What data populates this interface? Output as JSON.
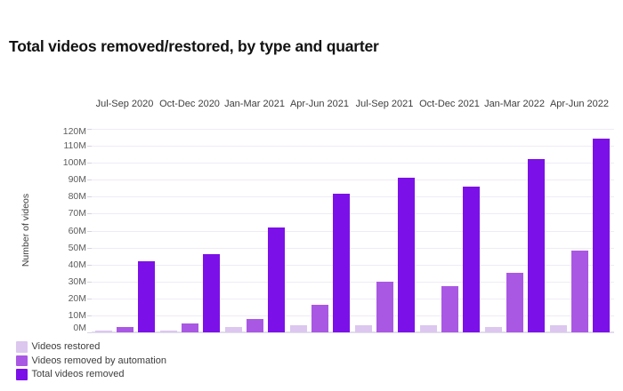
{
  "page": {
    "title": "Total videos removed/restored, by type and quarter"
  },
  "chart_data": {
    "type": "bar",
    "title": "Total videos removed/restored, by type and quarter",
    "categories": [
      "Jul-Sep 2020",
      "Oct-Dec 2020",
      "Jan-Mar 2021",
      "Apr-Jun 2021",
      "Jul-Sep 2021",
      "Oct-Dec 2021",
      "Jan-Mar 2022",
      "Apr-Jun 2022"
    ],
    "unit": "millions of videos",
    "series": [
      {
        "name": "Videos restored",
        "color": "#dcc7ef",
        "values": [
          1,
          1,
          3,
          4,
          4,
          4,
          3,
          4
        ]
      },
      {
        "name": "Videos removed by automation",
        "color": "#a958e3",
        "values": [
          3,
          5,
          8,
          16,
          30,
          27,
          35,
          48
        ]
      },
      {
        "name": "Total videos removed",
        "color": "#7b11e8",
        "values": [
          42,
          46,
          62,
          82,
          91,
          86,
          102,
          114
        ]
      }
    ],
    "ylabel": "Number of videos",
    "ylim": [
      0,
      120
    ],
    "ytick_step": 10,
    "ytick_suffix": "M",
    "ytick_labels": [
      "0M",
      "10M",
      "20M",
      "30M",
      "40M",
      "50M",
      "60M",
      "70M",
      "80M",
      "90M",
      "100M",
      "110M",
      "120M"
    ],
    "grid": true,
    "legend_position": "bottom-left"
  }
}
